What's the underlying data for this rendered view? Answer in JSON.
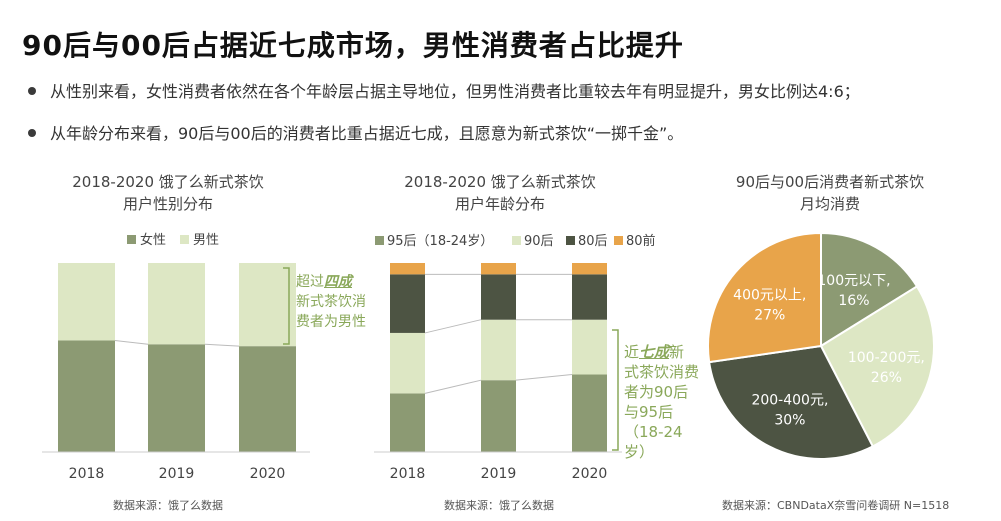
{
  "header": {
    "title": "90后与00后占据近七成市场，男性消费者占比提升",
    "bullet1": "从性别来看，女性消费者依然在各个年龄层占据主导地位，但男性消费者比重较去年有明显提升，男女比例达4:6；",
    "bullet2": "从年龄分布来看，90后与00后的消费者比重占据近七成，且愿意为新式茶饮“一掷千金”。"
  },
  "colors": {
    "female": "#8c9a73",
    "male": "#dde7c4",
    "post95": "#8c9a73",
    "post90": "#dde7c4",
    "post80": "#4d5443",
    "pre80": "#e8a44a",
    "pie_orange": "#e8a44a",
    "pie_sage": "#8c9a73",
    "pie_light": "#dde7c4",
    "pie_dark": "#4d5443",
    "annotation": "#8aa85a"
  },
  "chart1": {
    "title_line1": "2018-2020 饿了么新式茶饮",
    "title_line2": "用户性别分布",
    "source": "数据来源：饿了么数据",
    "annotation": {
      "line1_pre": "超过",
      "line1_em": "四成",
      "line2": "新式茶饮消",
      "line3": "费者为男性"
    }
  },
  "chart2": {
    "title_line1": "2018-2020 饿了么新式茶饮",
    "title_line2": "用户年龄分布",
    "source": "数据来源：饿了么数据",
    "annotation": {
      "line1_pre": "近",
      "line1_em": "七成",
      "line1_post": "新",
      "line2": "式茶饮消费",
      "line3": "者为90后",
      "line4": "与95后",
      "line5": "（18-24",
      "line6": "岁）"
    }
  },
  "chart3": {
    "title_line1": "90后与00后消费者新式茶饮",
    "title_line2": "月均消费",
    "source": "数据来源：CBNDataX奈雪问卷调研 N=1518"
  },
  "chart_data": [
    {
      "type": "bar",
      "stacked": true,
      "categories": [
        "2018",
        "2019",
        "2020"
      ],
      "series": [
        {
          "name": "女性",
          "values": [
            59,
            57,
            56
          ]
        },
        {
          "name": "男性",
          "values": [
            41,
            43,
            44
          ]
        }
      ],
      "ylim": [
        0,
        100
      ],
      "legend": "top"
    },
    {
      "type": "bar",
      "stacked": true,
      "categories": [
        "2018",
        "2019",
        "2020"
      ],
      "series": [
        {
          "name": "95后（18-24岁）",
          "values": [
            31,
            38,
            41
          ]
        },
        {
          "name": "90后",
          "values": [
            32,
            32,
            29
          ]
        },
        {
          "name": "80后",
          "values": [
            31,
            24,
            24
          ]
        },
        {
          "name": "80前",
          "values": [
            6,
            6,
            6
          ]
        }
      ],
      "ylim": [
        0,
        100
      ],
      "legend": "top"
    },
    {
      "type": "pie",
      "slices": [
        {
          "label": "100元以下,",
          "pct_label": "16%",
          "value": 16
        },
        {
          "label": "100-200元,",
          "pct_label": "26%",
          "value": 26
        },
        {
          "label": "200-400元,",
          "pct_label": "30%",
          "value": 30
        },
        {
          "label": "400元以上,",
          "pct_label": "27%",
          "value": 27
        }
      ]
    }
  ]
}
